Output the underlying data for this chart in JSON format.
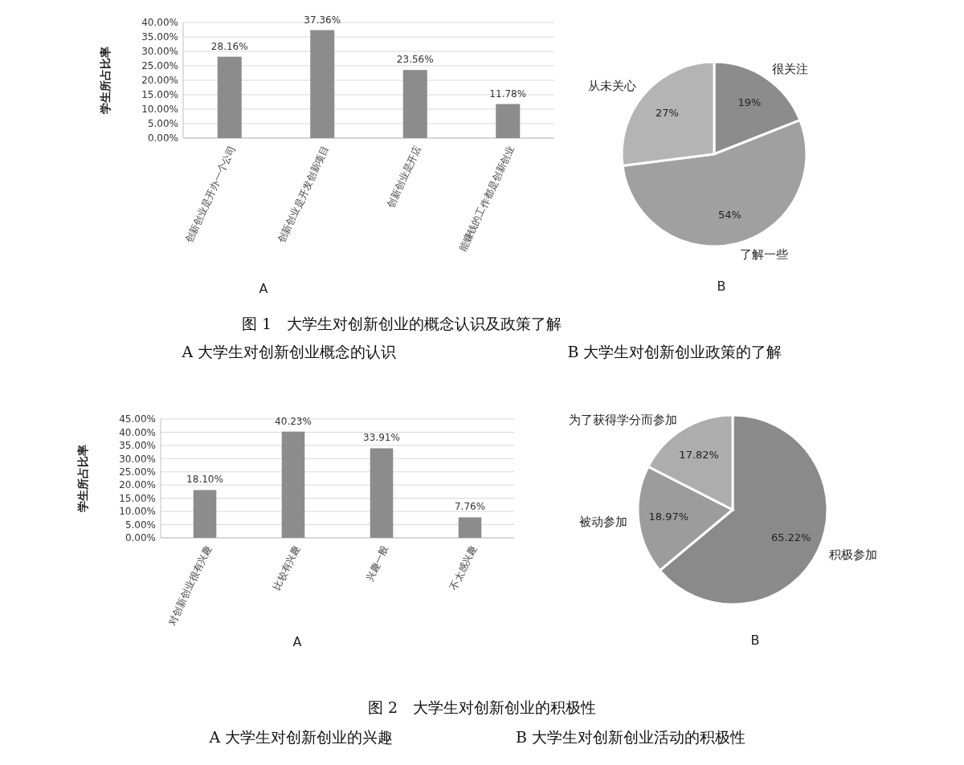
{
  "chart_data": [
    {
      "type": "bar",
      "title": "A",
      "ylabel": "学生所占比率",
      "categories": [
        "创新创业是开办一个公司",
        "创新创业是开发创新项目",
        "创新创业是开店",
        "能赚钱的工作都是创新创业"
      ],
      "values": [
        28.16,
        37.36,
        23.56,
        11.78
      ],
      "value_labels": [
        "28.16%",
        "37.36%",
        "23.56%",
        "11.78%"
      ],
      "color": "#8c8c8c",
      "ylim": [
        0,
        40
      ],
      "yticks": [
        {
          "value": 0,
          "label": "0.00%"
        },
        {
          "value": 5,
          "label": "5.00%"
        },
        {
          "value": 10,
          "label": "10.00%"
        },
        {
          "value": 15,
          "label": "15.00%"
        },
        {
          "value": 20,
          "label": "20.00%"
        },
        {
          "value": 25,
          "label": "25.00%"
        },
        {
          "value": 30,
          "label": "30.00%"
        },
        {
          "value": 35,
          "label": "35.00%"
        },
        {
          "value": 40,
          "label": "40.00%"
        }
      ],
      "grid": "y",
      "annotations": [
        "图 1　大学生对创新创业的概念认识及政策了解",
        "A 大学生对创新创业概念的认识"
      ]
    },
    {
      "type": "pie",
      "title": "B",
      "categories": [
        "很关注",
        "了解一些",
        "从未关心"
      ],
      "values": [
        19,
        54,
        27
      ],
      "value_labels": [
        "19%",
        "54%",
        "27%"
      ],
      "colors": [
        "#8c8c8c",
        "#a0a0a0",
        "#b4b4b4"
      ],
      "annotations": [
        "B 大学生对创新创业政策的了解"
      ]
    },
    {
      "type": "bar",
      "title": "A",
      "ylabel": "学生所占比率",
      "categories": [
        "对创新创业很有兴趣",
        "比较有兴趣",
        "兴趣一般",
        "不太感兴趣"
      ],
      "values": [
        18.1,
        40.23,
        33.91,
        7.76
      ],
      "value_labels": [
        "18.10%",
        "40.23%",
        "33.91%",
        "7.76%"
      ],
      "color": "#8c8c8c",
      "ylim": [
        0,
        45
      ],
      "yticks": [
        {
          "value": 0,
          "label": "0.00%"
        },
        {
          "value": 5,
          "label": "5.00%"
        },
        {
          "value": 10,
          "label": "10.00%"
        },
        {
          "value": 15,
          "label": "15.00%"
        },
        {
          "value": 20,
          "label": "20.00%"
        },
        {
          "value": 25,
          "label": "25.00%"
        },
        {
          "value": 30,
          "label": "30.00%"
        },
        {
          "value": 35,
          "label": "35.00%"
        },
        {
          "value": 40,
          "label": "40.00%"
        },
        {
          "value": 45,
          "label": "45.00%"
        }
      ],
      "grid": "y",
      "annotations": [
        "图 2　大学生对创新创业的积极性",
        "A 大学生对创新创业的兴趣"
      ]
    },
    {
      "type": "pie",
      "title": "B",
      "categories": [
        "积极参加",
        "被动参加",
        "为了获得学分而参加"
      ],
      "values": [
        65.22,
        18.97,
        17.82
      ],
      "value_labels": [
        "65.22%",
        "18.97%",
        "17.82%"
      ],
      "colors": [
        "#8a8a8a",
        "#9c9c9c",
        "#adadad"
      ],
      "annotations": [
        "B 大学生对创新创业活动的积极性"
      ]
    }
  ]
}
